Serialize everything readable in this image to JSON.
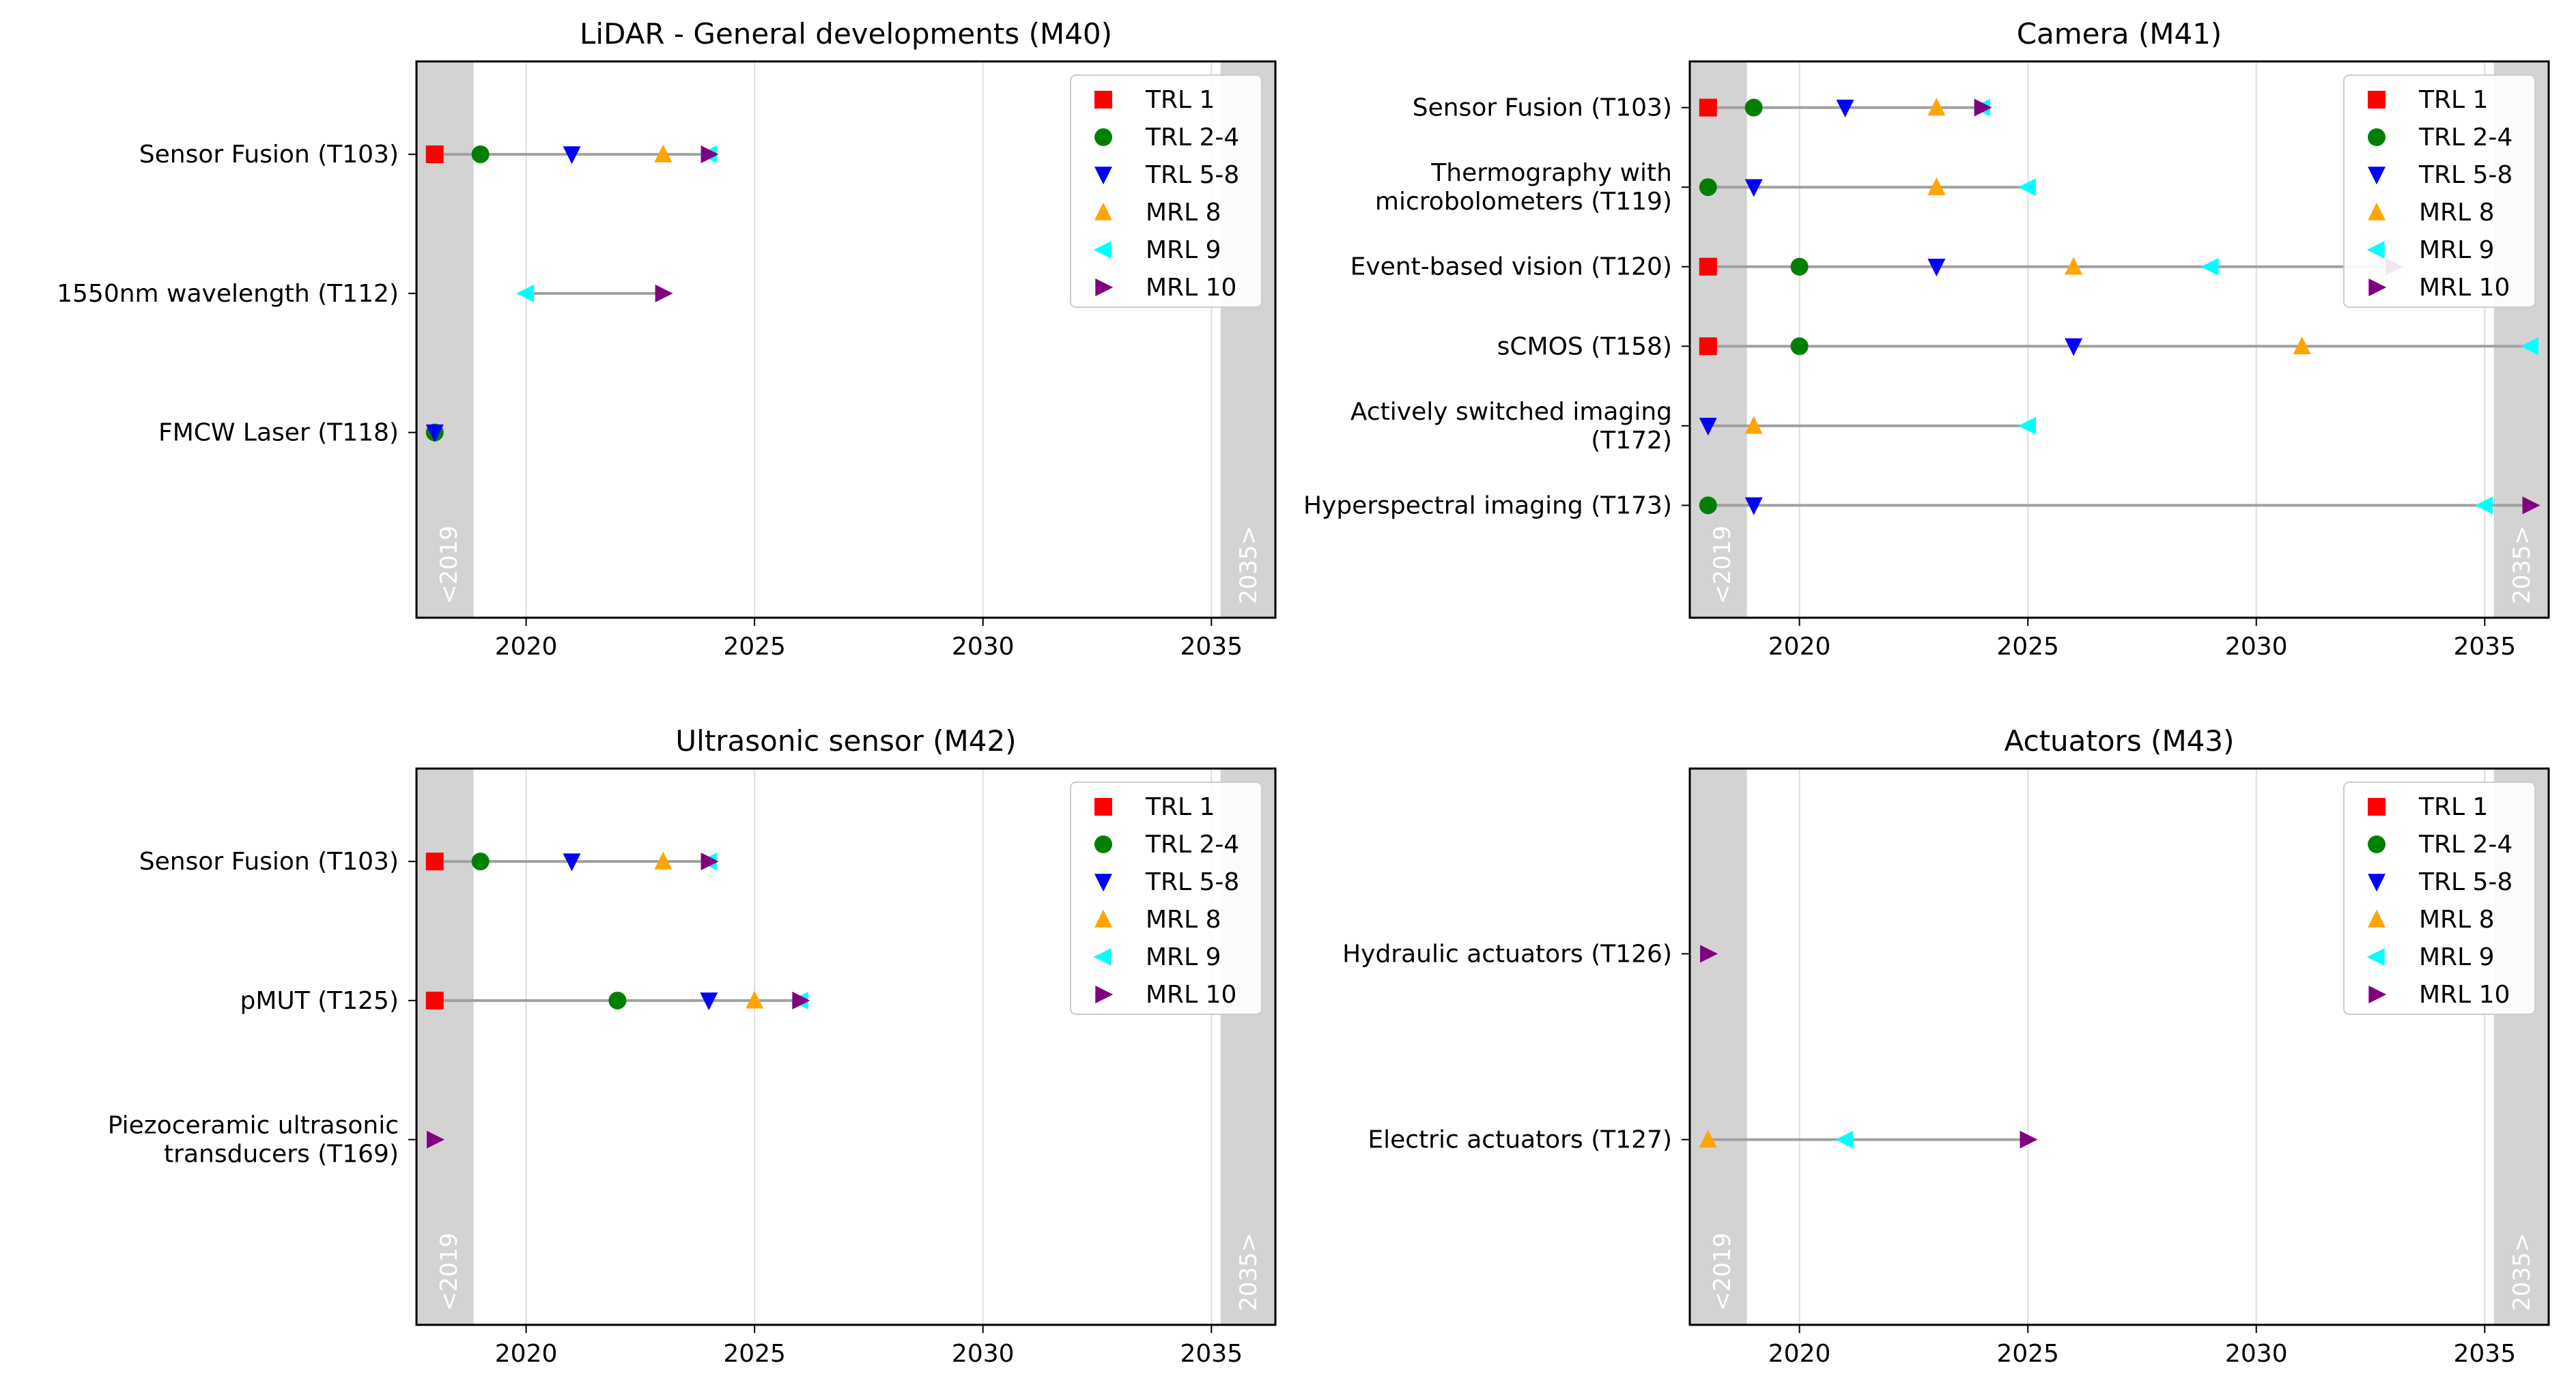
{
  "colors": {
    "TRL 1": "#ff0000",
    "TRL 2-4": "#008000",
    "TRL 5-8": "#0000ff",
    "MRL 8": "#ffa500",
    "MRL 9": "#00ffff",
    "MRL 10": "#800080",
    "band": "#d3d3d3",
    "grid": "#dddddd",
    "line": "#a0a0a0"
  },
  "legend": [
    {
      "label": "TRL 1",
      "marker": "square"
    },
    {
      "label": "TRL 2-4",
      "marker": "circle"
    },
    {
      "label": "TRL 5-8",
      "marker": "triangle-down"
    },
    {
      "label": "MRL 8",
      "marker": "triangle-up"
    },
    {
      "label": "MRL 9",
      "marker": "triangle-left"
    },
    {
      "label": "MRL 10",
      "marker": "triangle-right"
    }
  ],
  "band_labels": {
    "left": "<2019",
    "right": "2035>"
  },
  "chart_data": [
    {
      "type": "scatter",
      "title": "LiDAR - General developments (M40)",
      "xlim": [
        2017.6,
        2036.4
      ],
      "xticks": [
        2020,
        2025,
        2030,
        2035
      ],
      "rows": [
        {
          "label": [
            "Sensor Fusion (T103)"
          ],
          "points": {
            "TRL 1": 2018,
            "TRL 2-4": 2019,
            "TRL 5-8": 2021,
            "MRL 8": 2023,
            "MRL 9": 2024,
            "MRL 10": 2024
          }
        },
        {
          "label": [
            "1550nm wavelength (T112)"
          ],
          "points": {
            "MRL 9": 2020,
            "MRL 10": 2023
          }
        },
        {
          "label": [
            "FMCW Laser (T118)"
          ],
          "points": {
            "TRL 2-4": 2018,
            "TRL 5-8": 2018
          }
        }
      ]
    },
    {
      "type": "scatter",
      "title": "Camera (M41)",
      "xlim": [
        2017.6,
        2036.4
      ],
      "xticks": [
        2020,
        2025,
        2030,
        2035
      ],
      "rows": [
        {
          "label": [
            "Sensor Fusion (T103)"
          ],
          "points": {
            "TRL 1": 2018,
            "TRL 2-4": 2019,
            "TRL 5-8": 2021,
            "MRL 8": 2023,
            "MRL 9": 2024,
            "MRL 10": 2024
          }
        },
        {
          "label": [
            "Thermography with",
            "microbolometers (T119)"
          ],
          "points": {
            "TRL 2-4": 2018,
            "TRL 5-8": 2019,
            "MRL 8": 2023,
            "MRL 9": 2025
          }
        },
        {
          "label": [
            "Event-based vision (T120)"
          ],
          "points": {
            "TRL 1": 2018,
            "TRL 2-4": 2020,
            "TRL 5-8": 2023,
            "MRL 8": 2026,
            "MRL 9": 2029,
            "MRL 10": 2033
          }
        },
        {
          "label": [
            "sCMOS (T158)"
          ],
          "points": {
            "TRL 1": 2018,
            "TRL 2-4": 2020,
            "TRL 5-8": 2026,
            "MRL 8": 2031,
            "MRL 9": 2036
          }
        },
        {
          "label": [
            "Actively switched imaging",
            "(T172)"
          ],
          "points": {
            "TRL 5-8": 2018,
            "MRL 8": 2019,
            "MRL 9": 2025
          }
        },
        {
          "label": [
            "Hyperspectral imaging (T173)"
          ],
          "points": {
            "TRL 2-4": 2018,
            "TRL 5-8": 2019,
            "MRL 9": 2035,
            "MRL 10": 2036
          }
        }
      ]
    },
    {
      "type": "scatter",
      "title": "Ultrasonic sensor (M42)",
      "xlim": [
        2017.6,
        2036.4
      ],
      "xticks": [
        2020,
        2025,
        2030,
        2035
      ],
      "rows": [
        {
          "label": [
            "Sensor Fusion (T103)"
          ],
          "points": {
            "TRL 1": 2018,
            "TRL 2-4": 2019,
            "TRL 5-8": 2021,
            "MRL 8": 2023,
            "MRL 9": 2024,
            "MRL 10": 2024
          }
        },
        {
          "label": [
            "pMUT (T125)"
          ],
          "points": {
            "TRL 1": 2018,
            "TRL 2-4": 2022,
            "TRL 5-8": 2024,
            "MRL 8": 2025,
            "MRL 9": 2026,
            "MRL 10": 2026
          }
        },
        {
          "label": [
            "Piezoceramic ultrasonic",
            "transducers (T169)"
          ],
          "points": {
            "MRL 10": 2018
          }
        }
      ]
    },
    {
      "type": "scatter",
      "title": "Actuators (M43)",
      "xlim": [
        2017.6,
        2036.4
      ],
      "xticks": [
        2020,
        2025,
        2030,
        2035
      ],
      "rows": [
        {
          "label": [
            "Hydraulic actuators (T126)"
          ],
          "points": {
            "MRL 10": 2018
          }
        },
        {
          "label": [
            "Electric actuators (T127)"
          ],
          "points": {
            "MRL 8": 2018,
            "MRL 9": 2021,
            "MRL 10": 2025
          }
        }
      ]
    }
  ]
}
